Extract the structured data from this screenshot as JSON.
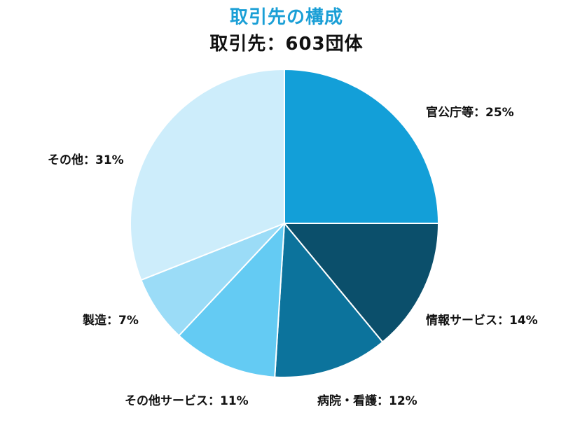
{
  "chart_data": {
    "type": "pie",
    "title": "取引先の構成",
    "subtitle": "取引先：603団体",
    "slices": [
      {
        "label": "官公庁等：25%",
        "value": 25,
        "color": "#139fd8"
      },
      {
        "label": "情報サービス：14%",
        "value": 14,
        "color": "#0b4f6b"
      },
      {
        "label": "病院・看護：12%",
        "value": 12,
        "color": "#0c739c"
      },
      {
        "label": "その他サービス：11%",
        "value": 11,
        "color": "#64cbf3"
      },
      {
        "label": "製造：7%",
        "value": 7,
        "color": "#9bdcf7"
      },
      {
        "label": "その他：31%",
        "value": 31,
        "color": "#cdedfb"
      }
    ]
  }
}
